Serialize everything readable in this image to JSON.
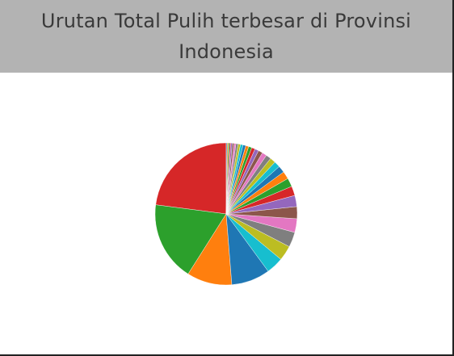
{
  "title": "Urutan Total Pulih terbesar di Provinsi Indonesia",
  "chart_data": {
    "type": "pie",
    "title": "Urutan Total Pulih terbesar di Provinsi Indonesia",
    "slices": [
      {
        "value": 23.5,
        "color": "#d62728"
      },
      {
        "value": 18.5,
        "color": "#2ca02c"
      },
      {
        "value": 10.5,
        "color": "#ff7f0e"
      },
      {
        "value": 9.0,
        "color": "#1f77b4"
      },
      {
        "value": 4.0,
        "color": "#17becf"
      },
      {
        "value": 3.5,
        "color": "#bcbd22"
      },
      {
        "value": 3.5,
        "color": "#7f7f7f"
      },
      {
        "value": 3.2,
        "color": "#e377c2"
      },
      {
        "value": 2.8,
        "color": "#8c564b"
      },
      {
        "value": 2.6,
        "color": "#9467bd"
      },
      {
        "value": 2.2,
        "color": "#d62728"
      },
      {
        "value": 2.0,
        "color": "#2ca02c"
      },
      {
        "value": 1.8,
        "color": "#ff7f0e"
      },
      {
        "value": 1.6,
        "color": "#1f77b4"
      },
      {
        "value": 1.4,
        "color": "#17becf"
      },
      {
        "value": 1.3,
        "color": "#bcbd22"
      },
      {
        "value": 1.2,
        "color": "#7f7f7f"
      },
      {
        "value": 1.1,
        "color": "#e377c2"
      },
      {
        "value": 1.0,
        "color": "#8c564b"
      },
      {
        "value": 0.9,
        "color": "#9467bd"
      },
      {
        "value": 0.8,
        "color": "#d62728"
      },
      {
        "value": 0.75,
        "color": "#2ca02c"
      },
      {
        "value": 0.7,
        "color": "#ff7f0e"
      },
      {
        "value": 0.65,
        "color": "#1f77b4"
      },
      {
        "value": 0.6,
        "color": "#17becf"
      },
      {
        "value": 0.55,
        "color": "#bcbd22"
      },
      {
        "value": 0.5,
        "color": "#7f7f7f"
      },
      {
        "value": 0.45,
        "color": "#e377c2"
      },
      {
        "value": 0.4,
        "color": "#8c564b"
      },
      {
        "value": 0.35,
        "color": "#9467bd"
      },
      {
        "value": 0.3,
        "color": "#d62728"
      },
      {
        "value": 0.3,
        "color": "#2ca02c"
      },
      {
        "value": 0.25,
        "color": "#ff7f0e"
      },
      {
        "value": 0.2,
        "color": "#1f77b4"
      }
    ],
    "start": "12 o'clock",
    "direction": "counterclockwise",
    "legend": "none",
    "data_labels": "none"
  }
}
